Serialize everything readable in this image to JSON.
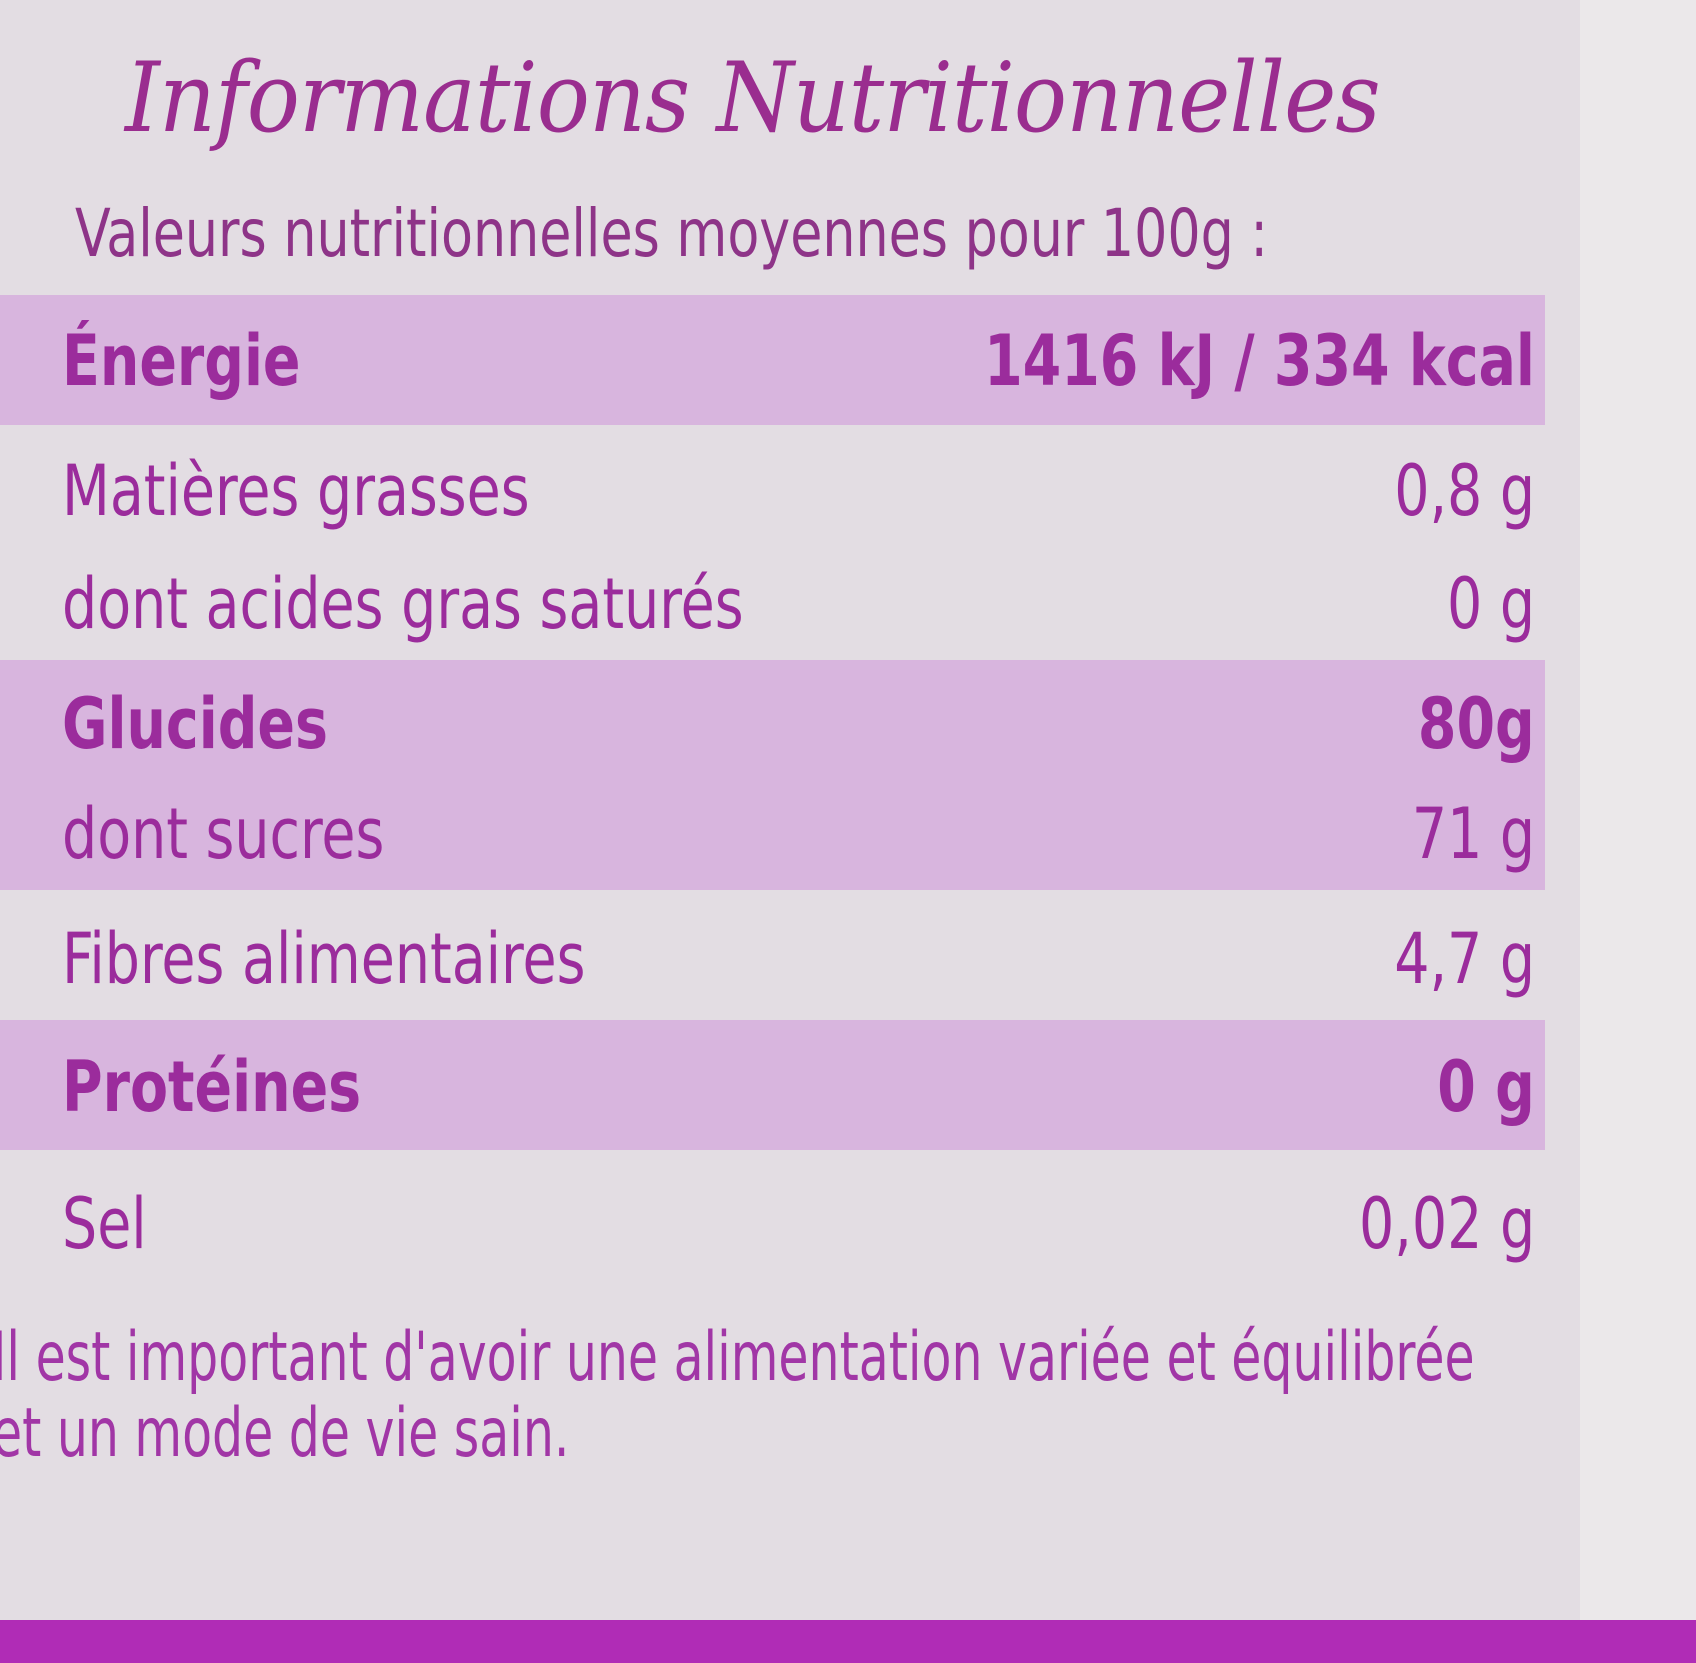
{
  "title": "Informations Nutritionnelles",
  "subtitle": "Valeurs nutritionnelles moyennes pour 100g :",
  "rows": [
    {
      "label": "Énergie",
      "value": "1416 kJ / 334 kcal"
    },
    {
      "label": "Matières grasses",
      "value": "0,8 g"
    },
    {
      "label": "dont acides gras saturés",
      "value": "0 g"
    },
    {
      "label": "Glucides",
      "value": "80g"
    },
    {
      "label": "dont sucres",
      "value": "71 g"
    },
    {
      "label": "Fibres alimentaires",
      "value": "4,7 g"
    },
    {
      "label": "Protéines",
      "value": "0 g"
    },
    {
      "label": "Sel",
      "value": "0,02 g"
    }
  ],
  "footer": {
    "line1": "Il est important d'avoir une alimentation variée et équilibrée",
    "line2": "et un mode de vie sain."
  },
  "colors": {
    "text": "#9b2c9c",
    "band": "#d8b5de",
    "background": "#e3dde3",
    "bottom_band": "#b02cb6"
  }
}
